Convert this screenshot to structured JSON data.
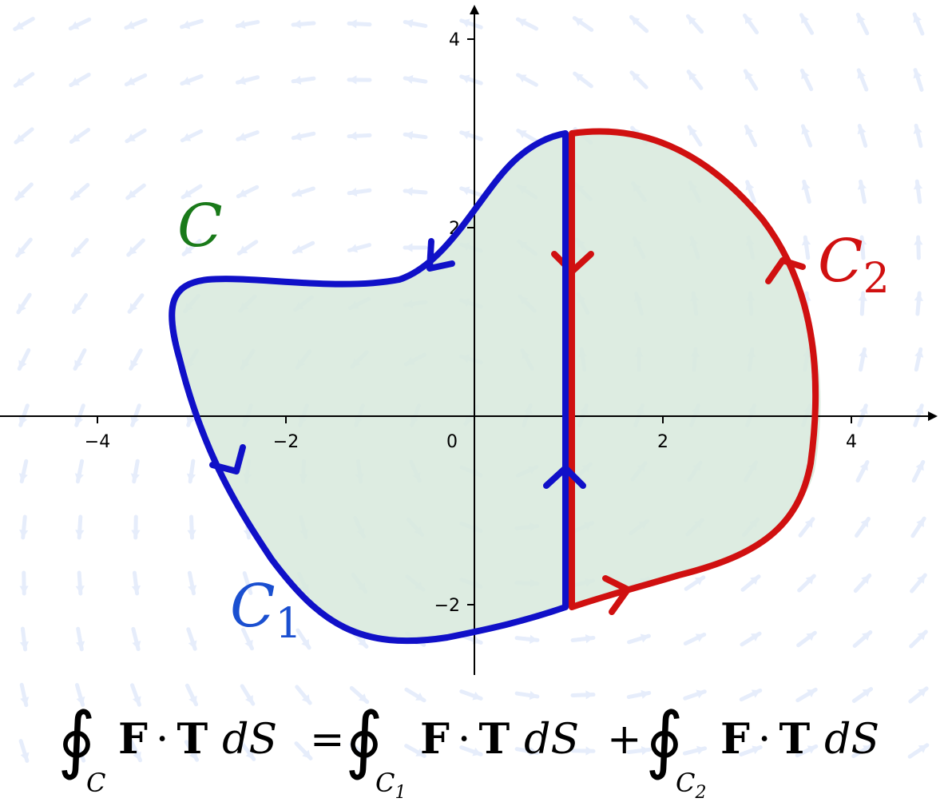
{
  "axes": {
    "x_ticks": [
      "−4",
      "−2",
      "0",
      "2",
      "4"
    ],
    "y_ticks": [
      "−2",
      "2",
      "4"
    ]
  },
  "labels": {
    "curve": "C",
    "part1_main": "C",
    "part1_sub": "1",
    "part2_main": "C",
    "part2_sub": "2"
  },
  "formula": {
    "integral": "∮",
    "lhs_sub": "C",
    "F": "F",
    "dot": "·",
    "T": "T",
    "d": "d",
    "S": "S",
    "equals": "=",
    "rhs1_sub": "C",
    "rhs1_subsub": "1",
    "plus": "+",
    "rhs2_sub": "C",
    "rhs2_subsub": "2"
  },
  "colors": {
    "region_fill": "#d7e9dc",
    "c1_color": "#1010c8",
    "c2_color": "#d01010",
    "c_label_color": "#1a7a1a",
    "c1_label_color": "#1a4fd0",
    "field_arrow_color": "#e6edfb"
  }
}
